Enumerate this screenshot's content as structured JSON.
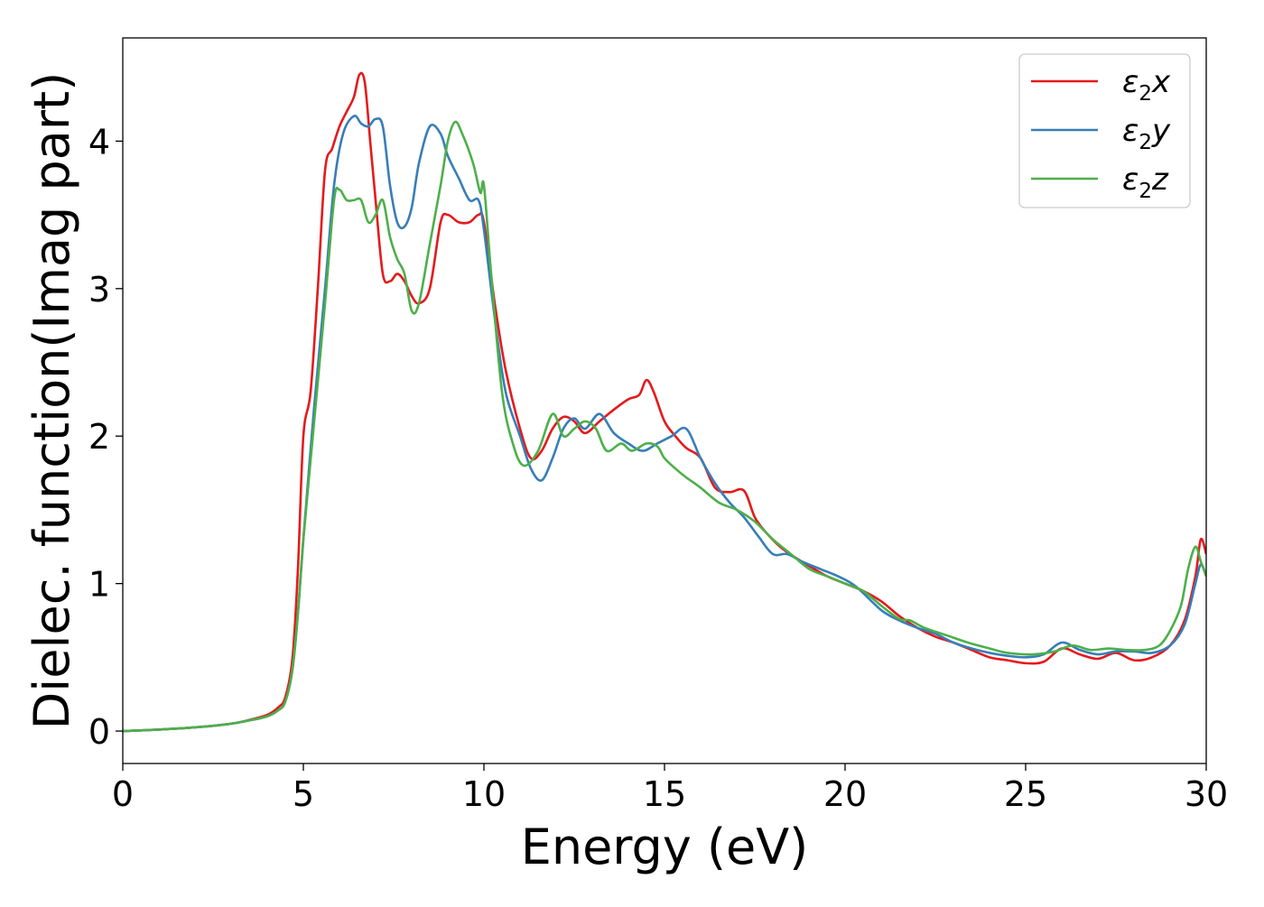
{
  "chart_data": {
    "type": "line",
    "title": "",
    "xlabel": "Energy (eV)",
    "ylabel": "Dielec. function(Imag part)",
    "xlim": [
      0,
      30
    ],
    "ylim": [
      -0.22,
      4.7
    ],
    "xticks": [
      0,
      5,
      10,
      15,
      20,
      25,
      30
    ],
    "xtick_labels": [
      "0",
      "5",
      "10",
      "15",
      "20",
      "25",
      "30"
    ],
    "yticks": [
      0,
      1,
      2,
      3,
      4
    ],
    "ytick_labels": [
      "0",
      "1",
      "2",
      "3",
      "4"
    ],
    "grid": false,
    "legend_position": "top-right",
    "series": [
      {
        "name": "ε₂x",
        "name_base": "ε",
        "name_sub": "2",
        "name_suffix": "x",
        "color": "#e41a1c",
        "x": [
          0,
          1,
          2,
          3,
          3.5,
          4,
          4.3,
          4.5,
          4.7,
          4.85,
          5.0,
          5.2,
          5.4,
          5.6,
          5.8,
          6.0,
          6.2,
          6.4,
          6.55,
          6.7,
          6.85,
          7.0,
          7.2,
          7.4,
          7.6,
          7.8,
          8.0,
          8.2,
          8.5,
          8.8,
          9.0,
          9.3,
          9.6,
          9.85,
          10.0,
          10.3,
          10.6,
          11.0,
          11.3,
          11.6,
          11.9,
          12.2,
          12.5,
          12.8,
          13.2,
          13.6,
          14.0,
          14.3,
          14.5,
          14.7,
          15.0,
          15.3,
          15.6,
          16.0,
          16.4,
          16.8,
          17.2,
          17.5,
          17.8,
          18.2,
          18.6,
          19.0,
          19.5,
          20.0,
          20.5,
          21.0,
          21.5,
          22.0,
          22.5,
          23.0,
          23.5,
          24.0,
          24.5,
          25.0,
          25.5,
          26.0,
          26.5,
          27.0,
          27.5,
          28.0,
          28.5,
          29.0,
          29.4,
          29.7,
          29.85,
          30.0
        ],
        "values": [
          0.0,
          0.01,
          0.025,
          0.05,
          0.075,
          0.11,
          0.16,
          0.23,
          0.5,
          1.1,
          2.0,
          2.3,
          3.0,
          3.8,
          3.95,
          4.1,
          4.2,
          4.3,
          4.45,
          4.4,
          4.0,
          3.6,
          3.1,
          3.05,
          3.1,
          3.05,
          2.95,
          2.9,
          3.0,
          3.45,
          3.5,
          3.45,
          3.45,
          3.5,
          3.45,
          2.9,
          2.45,
          2.05,
          1.85,
          1.9,
          2.05,
          2.13,
          2.1,
          2.02,
          2.1,
          2.18,
          2.25,
          2.28,
          2.38,
          2.3,
          2.1,
          2.0,
          1.92,
          1.85,
          1.65,
          1.62,
          1.63,
          1.45,
          1.35,
          1.25,
          1.18,
          1.12,
          1.05,
          1.0,
          0.95,
          0.88,
          0.78,
          0.7,
          0.64,
          0.6,
          0.55,
          0.5,
          0.48,
          0.46,
          0.47,
          0.56,
          0.52,
          0.49,
          0.53,
          0.48,
          0.5,
          0.58,
          0.75,
          1.05,
          1.3,
          1.2
        ]
      },
      {
        "name": "ε₂y",
        "name_base": "ε",
        "name_sub": "2",
        "name_suffix": "y",
        "color": "#377eb8",
        "x": [
          0,
          1,
          2,
          3,
          3.5,
          4,
          4.3,
          4.5,
          4.7,
          4.85,
          5.0,
          5.3,
          5.6,
          5.85,
          6.1,
          6.4,
          6.6,
          6.8,
          7.0,
          7.2,
          7.4,
          7.6,
          7.8,
          8.0,
          8.2,
          8.5,
          8.8,
          9.0,
          9.3,
          9.6,
          9.85,
          10.0,
          10.3,
          10.6,
          11.0,
          11.3,
          11.6,
          11.9,
          12.2,
          12.5,
          12.8,
          13.2,
          13.6,
          14.0,
          14.4,
          14.8,
          15.2,
          15.6,
          16.0,
          16.4,
          16.8,
          17.2,
          17.6,
          18.0,
          18.4,
          18.8,
          19.3,
          19.8,
          20.3,
          21.0,
          21.5,
          22.0,
          22.5,
          23.0,
          23.5,
          24.0,
          24.5,
          25.0,
          25.5,
          26.0,
          26.5,
          27.0,
          27.5,
          28.0,
          28.5,
          29.0,
          29.4,
          29.7,
          29.85,
          30.0
        ],
        "values": [
          0.0,
          0.01,
          0.025,
          0.05,
          0.072,
          0.1,
          0.14,
          0.2,
          0.42,
          0.8,
          1.3,
          2.2,
          3.0,
          3.7,
          4.05,
          4.17,
          4.12,
          4.1,
          4.15,
          4.1,
          3.7,
          3.45,
          3.42,
          3.55,
          3.85,
          4.1,
          4.05,
          3.9,
          3.75,
          3.6,
          3.6,
          3.4,
          2.8,
          2.3,
          2.0,
          1.78,
          1.7,
          1.85,
          2.05,
          2.12,
          2.05,
          2.15,
          2.02,
          1.95,
          1.9,
          1.95,
          2.0,
          2.05,
          1.85,
          1.68,
          1.55,
          1.45,
          1.32,
          1.2,
          1.2,
          1.15,
          1.1,
          1.05,
          0.98,
          0.82,
          0.75,
          0.7,
          0.66,
          0.6,
          0.56,
          0.53,
          0.51,
          0.5,
          0.52,
          0.6,
          0.55,
          0.52,
          0.54,
          0.54,
          0.53,
          0.58,
          0.72,
          1.0,
          1.13,
          1.05
        ]
      },
      {
        "name": "ε₂z",
        "name_base": "ε",
        "name_sub": "2",
        "name_suffix": "z",
        "color": "#4daf4a",
        "x": [
          0,
          1,
          2,
          3,
          3.5,
          4,
          4.3,
          4.5,
          4.7,
          4.85,
          5.0,
          5.3,
          5.6,
          5.85,
          6.0,
          6.2,
          6.4,
          6.6,
          6.8,
          7.0,
          7.2,
          7.4,
          7.6,
          7.8,
          8.0,
          8.2,
          8.5,
          8.8,
          9.0,
          9.2,
          9.4,
          9.7,
          9.9,
          10.0,
          10.2,
          10.5,
          10.8,
          11.1,
          11.5,
          11.9,
          12.2,
          12.5,
          12.8,
          13.1,
          13.4,
          13.8,
          14.1,
          14.5,
          14.8,
          15.0,
          15.3,
          15.6,
          16.0,
          16.5,
          17.0,
          17.5,
          18.0,
          18.5,
          19.0,
          19.5,
          20.0,
          20.5,
          21.0,
          21.5,
          21.8,
          22.2,
          22.8,
          23.4,
          24.0,
          24.5,
          25.2,
          25.8,
          26.3,
          26.8,
          27.3,
          27.8,
          28.3,
          28.7,
          29.0,
          29.3,
          29.5,
          29.7,
          29.85,
          30.0
        ],
        "values": [
          0.0,
          0.01,
          0.025,
          0.05,
          0.072,
          0.1,
          0.14,
          0.2,
          0.42,
          0.8,
          1.3,
          2.1,
          2.9,
          3.6,
          3.67,
          3.6,
          3.6,
          3.6,
          3.45,
          3.5,
          3.6,
          3.35,
          3.2,
          3.1,
          2.85,
          2.9,
          3.3,
          3.7,
          4.0,
          4.13,
          4.05,
          3.85,
          3.65,
          3.7,
          3.1,
          2.3,
          1.95,
          1.8,
          1.9,
          2.15,
          2.0,
          2.05,
          2.1,
          2.05,
          1.9,
          1.95,
          1.9,
          1.95,
          1.93,
          1.85,
          1.78,
          1.72,
          1.65,
          1.55,
          1.5,
          1.42,
          1.3,
          1.2,
          1.1,
          1.05,
          1.0,
          0.95,
          0.85,
          0.76,
          0.75,
          0.7,
          0.65,
          0.6,
          0.56,
          0.53,
          0.52,
          0.54,
          0.58,
          0.55,
          0.56,
          0.55,
          0.55,
          0.58,
          0.68,
          0.85,
          1.1,
          1.25,
          1.15,
          1.05
        ]
      }
    ]
  }
}
